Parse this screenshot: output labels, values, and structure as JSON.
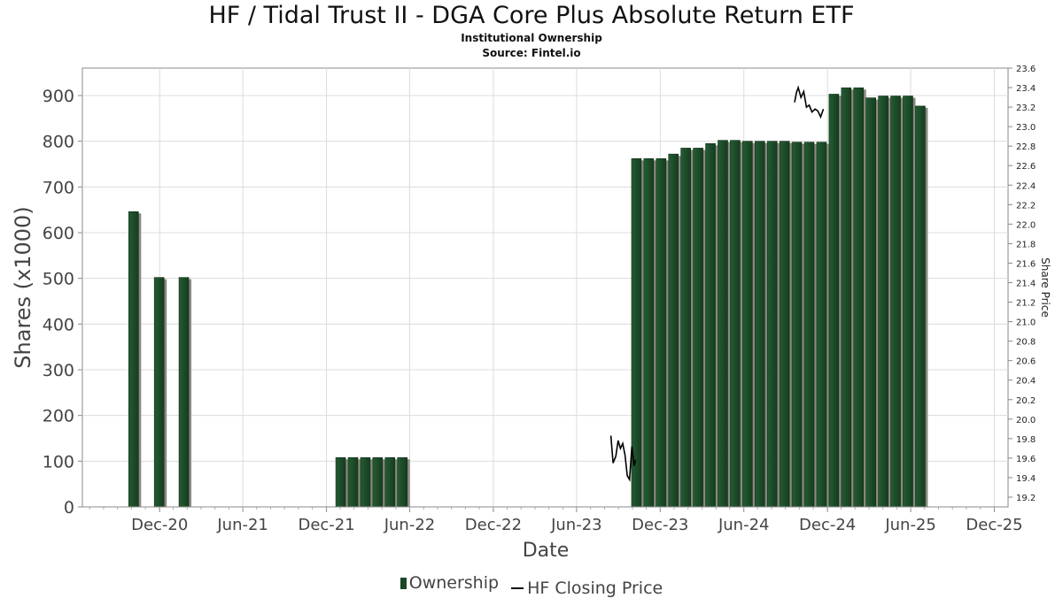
{
  "chart_data": {
    "type": "bar",
    "title": "HF / Tidal Trust II - DGA Core Plus Absolute Return ETF",
    "subtitle": [
      "Institutional Ownership",
      "Source: Fintel.io"
    ],
    "xlabel": "Date",
    "ylabel": "Shares (x1000)",
    "y2label": "Share Price",
    "ylim": [
      0,
      960
    ],
    "y2lim": [
      19.1,
      23.6
    ],
    "xlim": [
      "2020-06-15",
      "2025-12-31"
    ],
    "grid": true,
    "legend_position": "bottom",
    "x_ticks": [
      {
        "date": "2020-12-01",
        "label": "Dec-20"
      },
      {
        "date": "2021-06-01",
        "label": "Jun-21"
      },
      {
        "date": "2021-12-01",
        "label": "Dec-21"
      },
      {
        "date": "2022-06-01",
        "label": "Jun-22"
      },
      {
        "date": "2022-12-01",
        "label": "Dec-22"
      },
      {
        "date": "2023-06-01",
        "label": "Jun-23"
      },
      {
        "date": "2023-12-01",
        "label": "Dec-23"
      },
      {
        "date": "2024-06-01",
        "label": "Jun-24"
      },
      {
        "date": "2024-12-01",
        "label": "Dec-24"
      },
      {
        "date": "2025-06-01",
        "label": "Jun-25"
      },
      {
        "date": "2025-12-01",
        "label": "Dec-25"
      }
    ],
    "y_ticks": [
      0,
      100,
      200,
      300,
      400,
      500,
      600,
      700,
      800,
      900
    ],
    "y2_ticks": [
      "19.2",
      "19.4",
      "19.6",
      "19.8",
      "20.0",
      "20.2",
      "20.4",
      "20.6",
      "20.8",
      "21.0",
      "21.2",
      "21.4",
      "21.6",
      "21.8",
      "22.0",
      "22.2",
      "22.4",
      "22.6",
      "22.8",
      "23.0",
      "23.2",
      "23.4",
      "23.6"
    ],
    "series": [
      {
        "name": "Ownership",
        "color": "#1a4726",
        "points": [
          {
            "x": "2020-10-05",
            "y": 646
          },
          {
            "x": "2020-11-30",
            "y": 502
          },
          {
            "x": "2021-01-23",
            "y": 502
          },
          {
            "x": "2022-01-01",
            "y": 108
          },
          {
            "x": "2022-01-28",
            "y": 108
          },
          {
            "x": "2022-02-24",
            "y": 108
          },
          {
            "x": "2022-03-23",
            "y": 108
          },
          {
            "x": "2022-04-19",
            "y": 108
          },
          {
            "x": "2022-05-16",
            "y": 108
          },
          {
            "x": "2023-10-10",
            "y": 762
          },
          {
            "x": "2023-11-06",
            "y": 762
          },
          {
            "x": "2023-12-03",
            "y": 762
          },
          {
            "x": "2023-12-30",
            "y": 772
          },
          {
            "x": "2024-01-26",
            "y": 785
          },
          {
            "x": "2024-02-22",
            "y": 785
          },
          {
            "x": "2024-03-20",
            "y": 795
          },
          {
            "x": "2024-04-16",
            "y": 802
          },
          {
            "x": "2024-05-13",
            "y": 802
          },
          {
            "x": "2024-06-09",
            "y": 800
          },
          {
            "x": "2024-07-06",
            "y": 800
          },
          {
            "x": "2024-08-02",
            "y": 800
          },
          {
            "x": "2024-08-29",
            "y": 800
          },
          {
            "x": "2024-09-25",
            "y": 798
          },
          {
            "x": "2024-10-22",
            "y": 798
          },
          {
            "x": "2024-11-18",
            "y": 798
          },
          {
            "x": "2024-12-15",
            "y": 903
          },
          {
            "x": "2025-01-11",
            "y": 917
          },
          {
            "x": "2025-02-07",
            "y": 917
          },
          {
            "x": "2025-03-06",
            "y": 895
          },
          {
            "x": "2025-04-02",
            "y": 899
          },
          {
            "x": "2025-04-29",
            "y": 899
          },
          {
            "x": "2025-05-26",
            "y": 899
          },
          {
            "x": "2025-06-22",
            "y": 877
          }
        ]
      },
      {
        "name": "HF Closing Price",
        "color": "#000000",
        "axis": "right",
        "points": [
          {
            "x": "2023-08-15",
            "y": 19.83
          },
          {
            "x": "2023-08-20",
            "y": 19.55
          },
          {
            "x": "2023-08-26",
            "y": 19.62
          },
          {
            "x": "2023-08-31",
            "y": 19.78
          },
          {
            "x": "2023-09-05",
            "y": 19.7
          },
          {
            "x": "2023-09-10",
            "y": 19.75
          },
          {
            "x": "2023-09-15",
            "y": 19.63
          },
          {
            "x": "2023-09-20",
            "y": 19.42
          },
          {
            "x": "2023-09-25",
            "y": 19.38
          },
          {
            "x": "2023-09-30",
            "y": 19.72
          },
          {
            "x": "2023-10-05",
            "y": 19.52
          },
          {
            "x": "2023-10-08",
            "y": 19.58
          },
          {
            "x": "2024-09-20",
            "y": 23.25
          },
          {
            "x": "2024-09-24",
            "y": 23.35
          },
          {
            "x": "2024-09-28",
            "y": 23.4
          },
          {
            "x": "2024-10-04",
            "y": 23.3
          },
          {
            "x": "2024-10-10",
            "y": 23.36
          },
          {
            "x": "2024-10-16",
            "y": 23.2
          },
          {
            "x": "2024-10-22",
            "y": 23.22
          },
          {
            "x": "2024-10-28",
            "y": 23.15
          },
          {
            "x": "2024-11-04",
            "y": 23.18
          },
          {
            "x": "2024-11-10",
            "y": 23.16
          },
          {
            "x": "2024-11-16",
            "y": 23.1
          },
          {
            "x": "2024-11-22",
            "y": 23.18
          }
        ]
      }
    ]
  }
}
